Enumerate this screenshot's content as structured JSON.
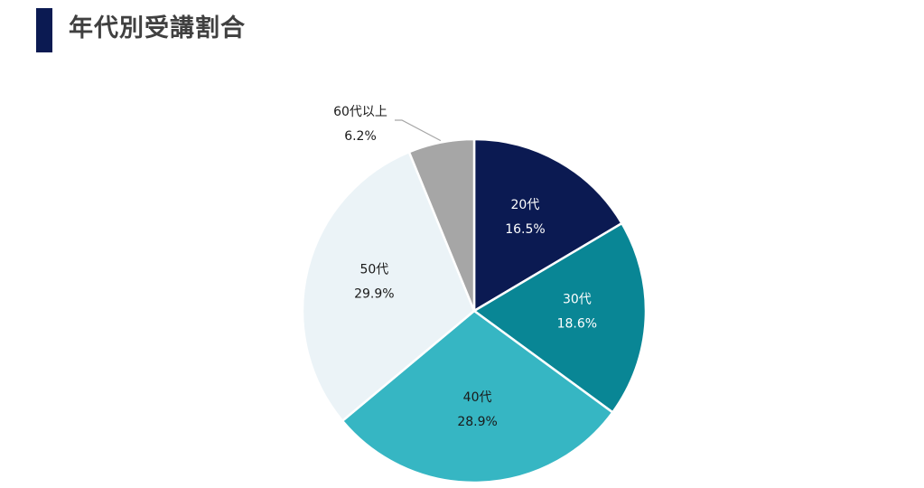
{
  "header": {
    "title": "年代別受講割合"
  },
  "chart_data": {
    "type": "pie",
    "title": "年代別受講割合",
    "start": "12 o'clock",
    "direction": "clockwise",
    "slices": [
      {
        "label": "20代",
        "value": 16.5,
        "display": "16.5%",
        "color": "#0b1a52",
        "text_color": "#ffffff"
      },
      {
        "label": "30代",
        "value": 18.6,
        "display": "18.6%",
        "color": "#098695",
        "text_color": "#ffffff"
      },
      {
        "label": "40代",
        "value": 28.9,
        "display": "28.9%",
        "color": "#36b6c3",
        "text_color": "#1a1a1a"
      },
      {
        "label": "50代",
        "value": 29.9,
        "display": "29.9%",
        "color": "#ebf3f7",
        "text_color": "#1a1a1a"
      },
      {
        "label": "60代以上",
        "value": 6.2,
        "display": "6.2%",
        "color": "#a6a6a6",
        "text_color": "#1a1a1a",
        "label_outside": true
      }
    ]
  }
}
